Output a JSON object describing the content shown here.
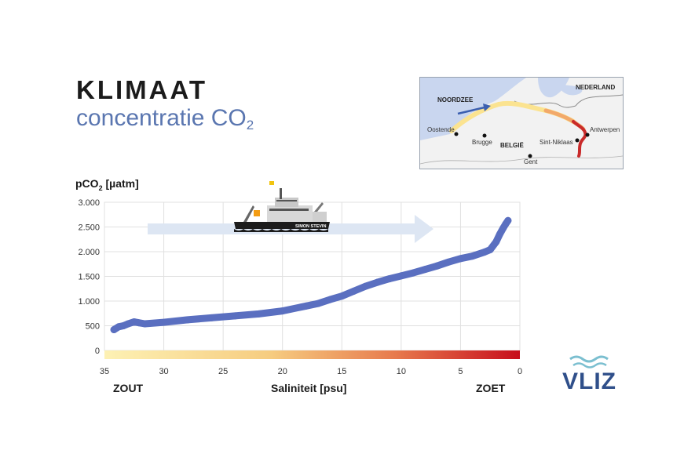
{
  "header": {
    "title": "KLIMAAT",
    "subtitle_main": "concentratie CO",
    "subtitle_sub": "2"
  },
  "map": {
    "labels": {
      "noordzee": "NOORDZEE",
      "nederland": "NEDERLAND",
      "oostende": "Oostende",
      "brugge": "Brugge",
      "belgie": "BELGIË",
      "gent": "Gent",
      "sint_niklaas": "Sint-Niklaas",
      "antwerpen": "Antwerpen"
    }
  },
  "ship": {
    "name": "SIMON STEVIN"
  },
  "bottom_labels": {
    "left": "ZOUT",
    "right": "ZOET"
  },
  "logo": {
    "text": "VLIZ"
  },
  "colors": {
    "line": "#5a6fc0",
    "arrow": "#dde6f3",
    "grid": "#e0e0e0",
    "salinity_high": "#fbe9a0",
    "salinity_low": "#c70e1c",
    "title_sub": "#5a76b0",
    "logo": "#2f4f8a"
  },
  "chart_data": {
    "type": "line",
    "ylabel_main": "pCO",
    "ylabel_sub": "2",
    "ylabel_unit": " [µatm]",
    "xlabel": "Saliniteit [psu]",
    "xlim": [
      35,
      0
    ],
    "ylim": [
      0,
      3000
    ],
    "xticks": [
      35,
      30,
      25,
      20,
      15,
      10,
      5,
      0
    ],
    "yticks": [
      0,
      500,
      1000,
      1500,
      2000,
      2500,
      3000
    ],
    "ytick_labels": [
      "0",
      "500",
      "1.000",
      "1.500",
      "2.000",
      "2.500",
      "3.000"
    ],
    "grid": true,
    "series": [
      {
        "x": [
          34.2,
          33.8,
          33.4,
          33.0,
          32.5,
          32.1,
          31.6,
          30.0,
          28.0,
          26.0,
          24.0,
          22.0,
          20.0,
          18.0,
          17.0,
          16.0,
          15.0,
          14.0,
          13.0,
          12.0,
          11.0,
          10.0,
          9.0,
          8.0,
          7.0,
          6.0,
          5.0,
          4.0,
          3.0,
          2.5,
          2.0,
          1.7,
          1.4,
          1.2,
          1.0
        ],
        "y": [
          420,
          480,
          500,
          540,
          580,
          560,
          540,
          570,
          620,
          660,
          700,
          740,
          800,
          900,
          950,
          1030,
          1100,
          1200,
          1300,
          1380,
          1450,
          1510,
          1570,
          1640,
          1710,
          1790,
          1860,
          1910,
          1990,
          2040,
          2200,
          2350,
          2480,
          2560,
          2630
        ]
      }
    ]
  }
}
